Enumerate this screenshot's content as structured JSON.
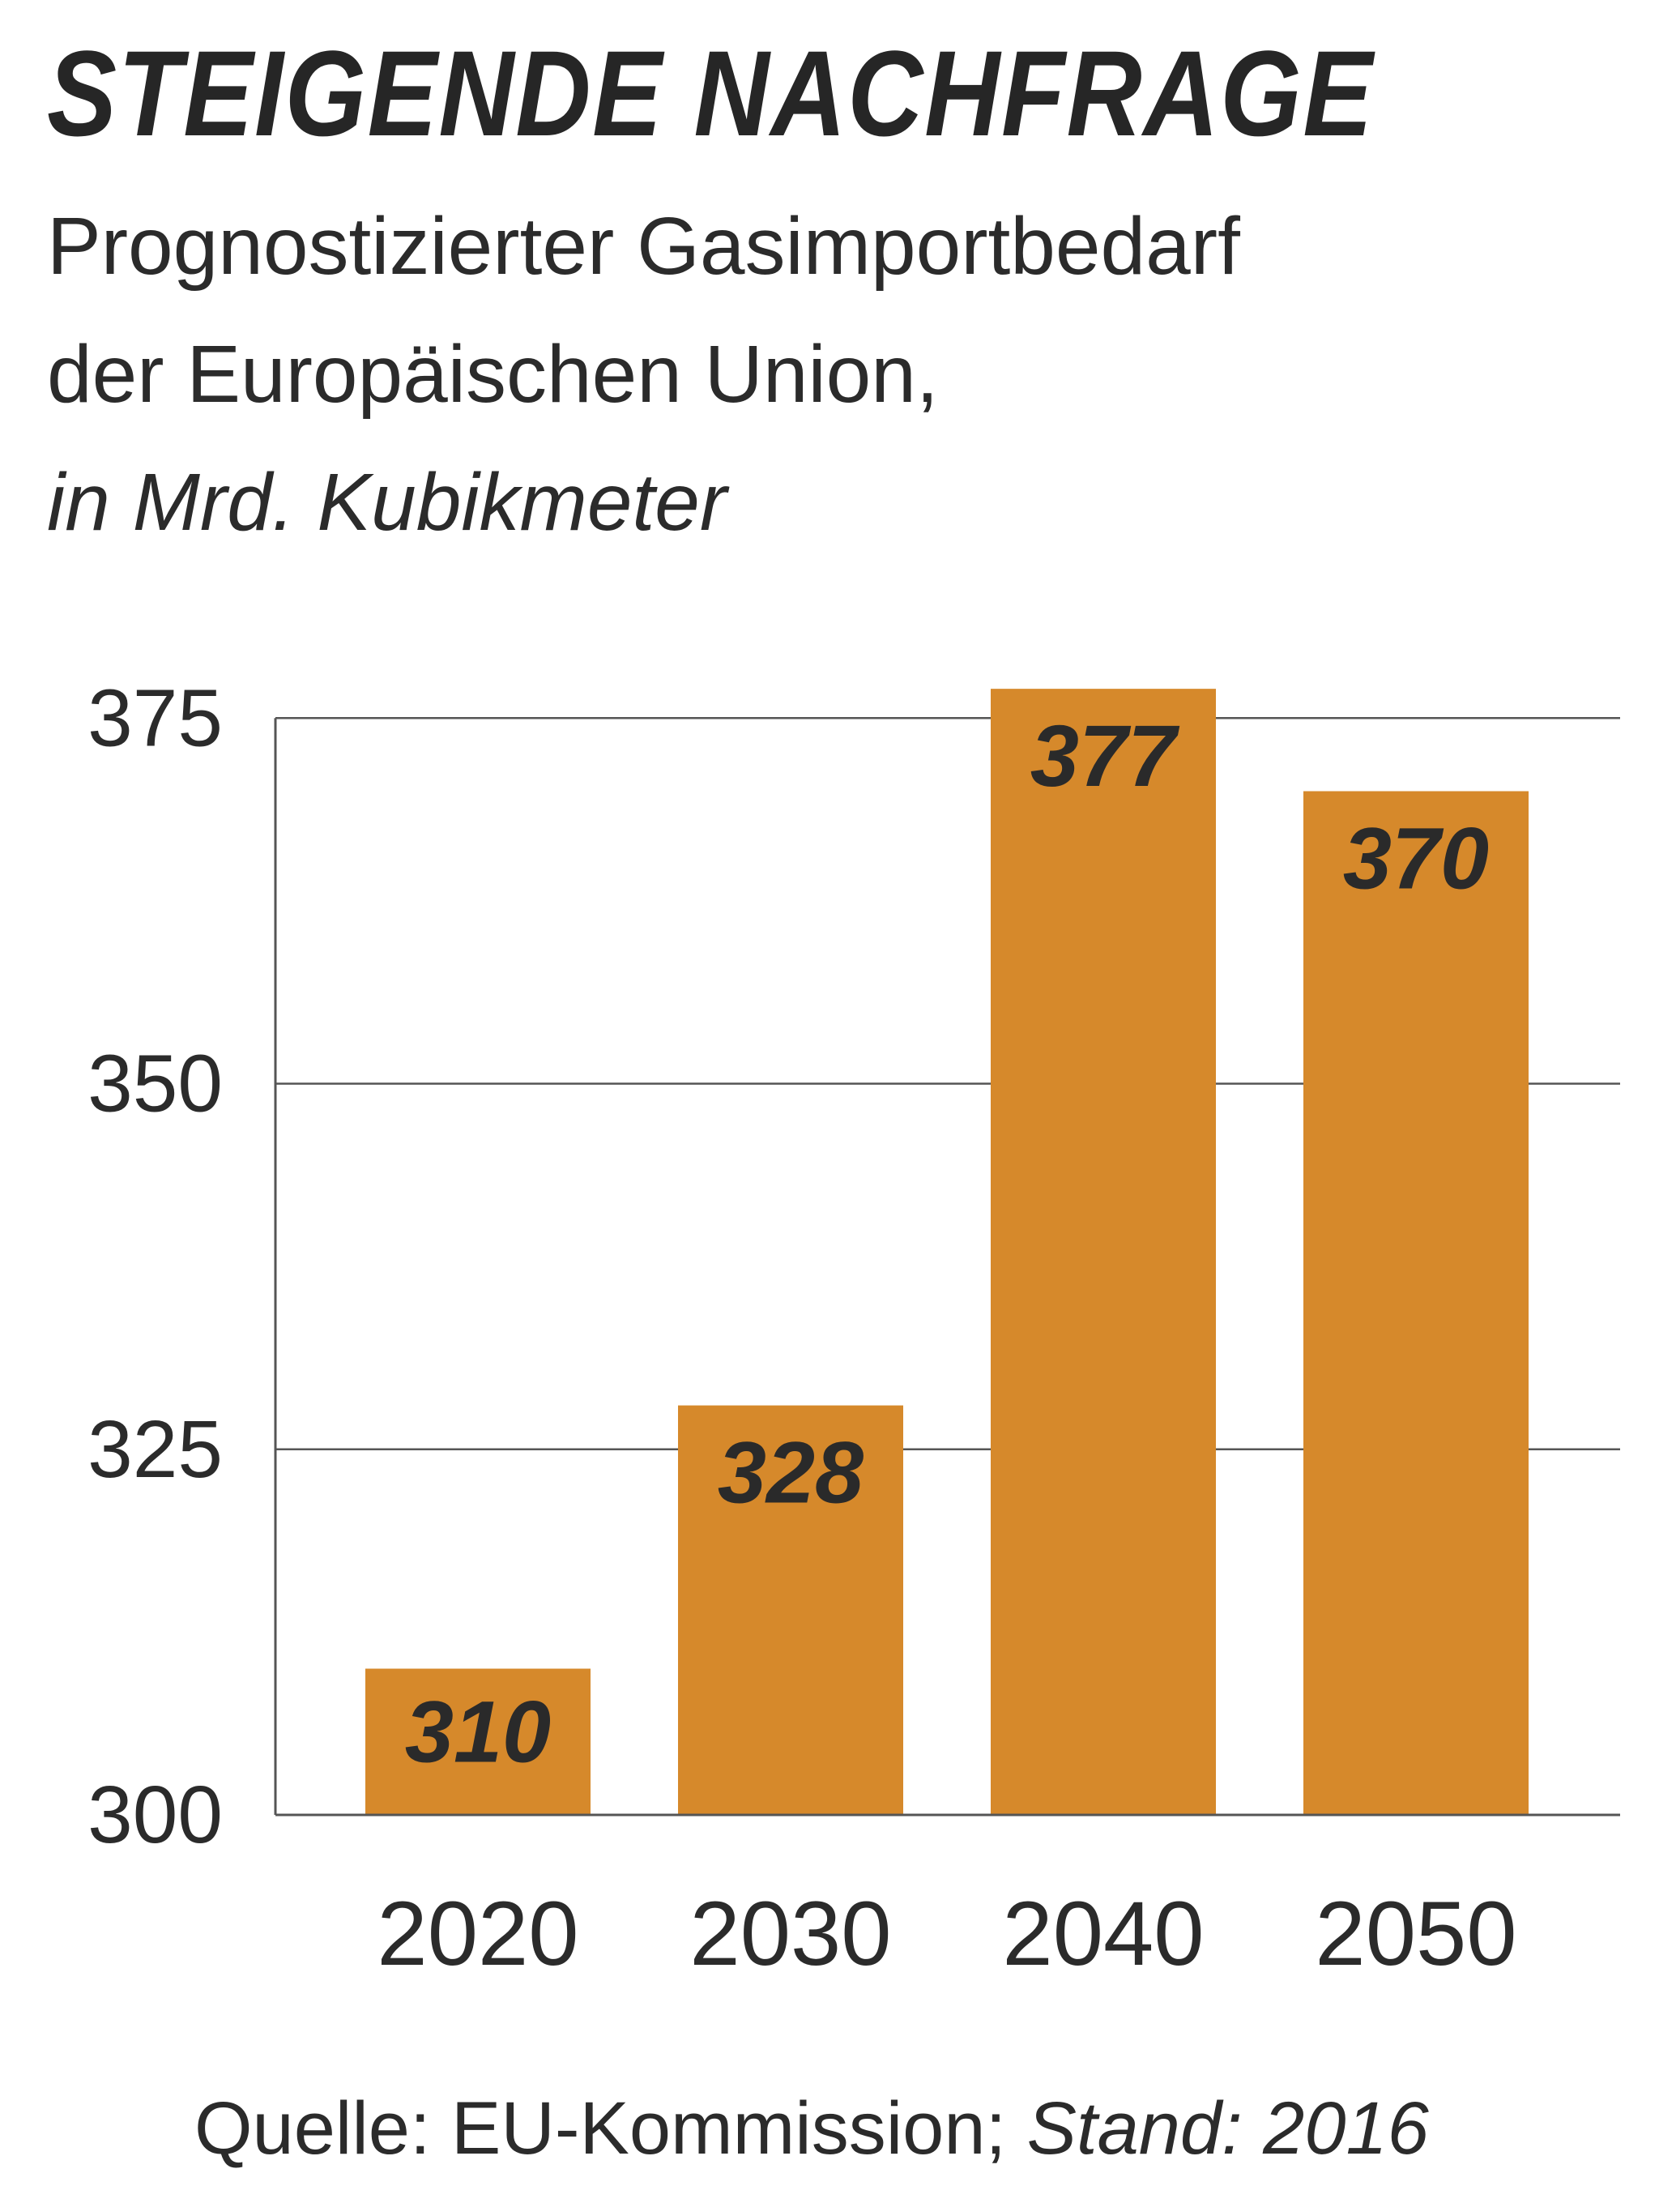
{
  "chart_data": {
    "type": "bar",
    "title": "STEIGENDE NACHFRAGE",
    "subtitle_lines": [
      "Prognostizierter Gasimportbedarf",
      "der Europäischen Union,"
    ],
    "unit": "in Mrd. Kubikmeter",
    "categories": [
      "2020",
      "2030",
      "2040",
      "2050"
    ],
    "values": [
      310,
      328,
      377,
      370
    ],
    "value_labels": [
      "310",
      "328",
      "377",
      "370"
    ],
    "yticks": [
      "300",
      "325",
      "350",
      "375"
    ],
    "ylim": [
      300,
      378
    ],
    "grid": true,
    "bar_color": "#d6892b",
    "source": "Quelle: EU-Kommission; ",
    "source_date": "Stand: 2016"
  }
}
